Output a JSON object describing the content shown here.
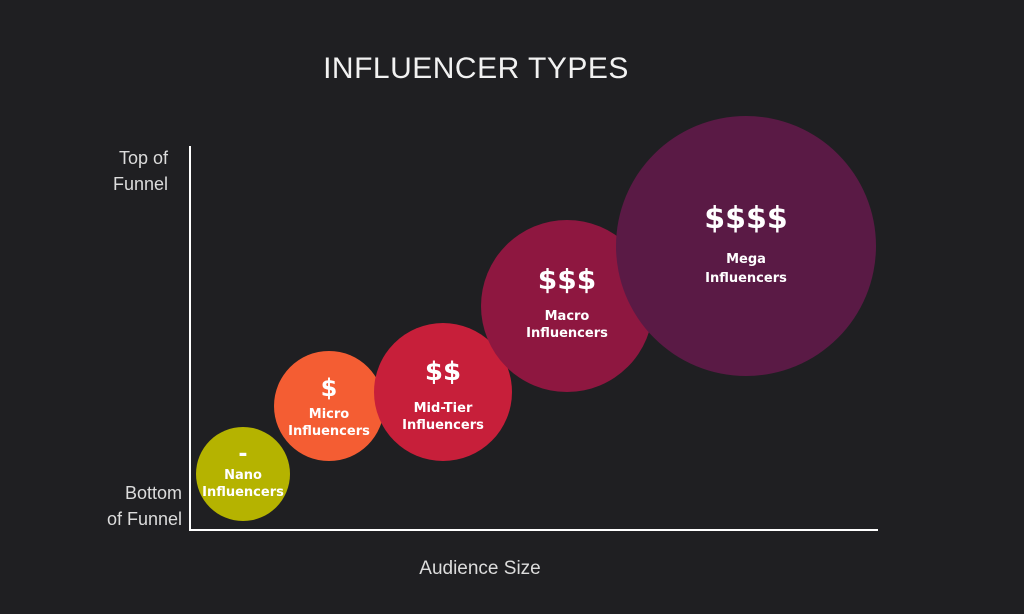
{
  "title": "INFLUENCER TYPES",
  "y_axis": {
    "top_label": [
      "Top of",
      "Funnel"
    ],
    "bottom_label": [
      "Bottom",
      "of Funnel"
    ]
  },
  "x_axis": {
    "label": "Audience Size"
  },
  "bubbles": [
    {
      "symbol": "-",
      "lines": [
        "Nano",
        "Influencers"
      ],
      "color": "#b5b300",
      "text_color": "#3d3a14"
    },
    {
      "symbol": "$",
      "lines": [
        "Micro",
        "Influencers"
      ],
      "color": "#f45d33",
      "text_color": "#ffffff"
    },
    {
      "symbol": "$$",
      "lines": [
        "Mid-Tier",
        "Influencers"
      ],
      "color": "#c71f3a",
      "text_color": "#ffffff"
    },
    {
      "symbol": "$$$",
      "lines": [
        "Macro",
        "Influencers"
      ],
      "color": "#8e1740",
      "text_color": "#ffffff"
    },
    {
      "symbol": "$$$$",
      "lines": [
        "Mega",
        "Influencers"
      ],
      "color": "#5a1a45",
      "text_color": "#ffffff"
    }
  ],
  "axis_color": "#ffffff",
  "background": "#1f1f22"
}
